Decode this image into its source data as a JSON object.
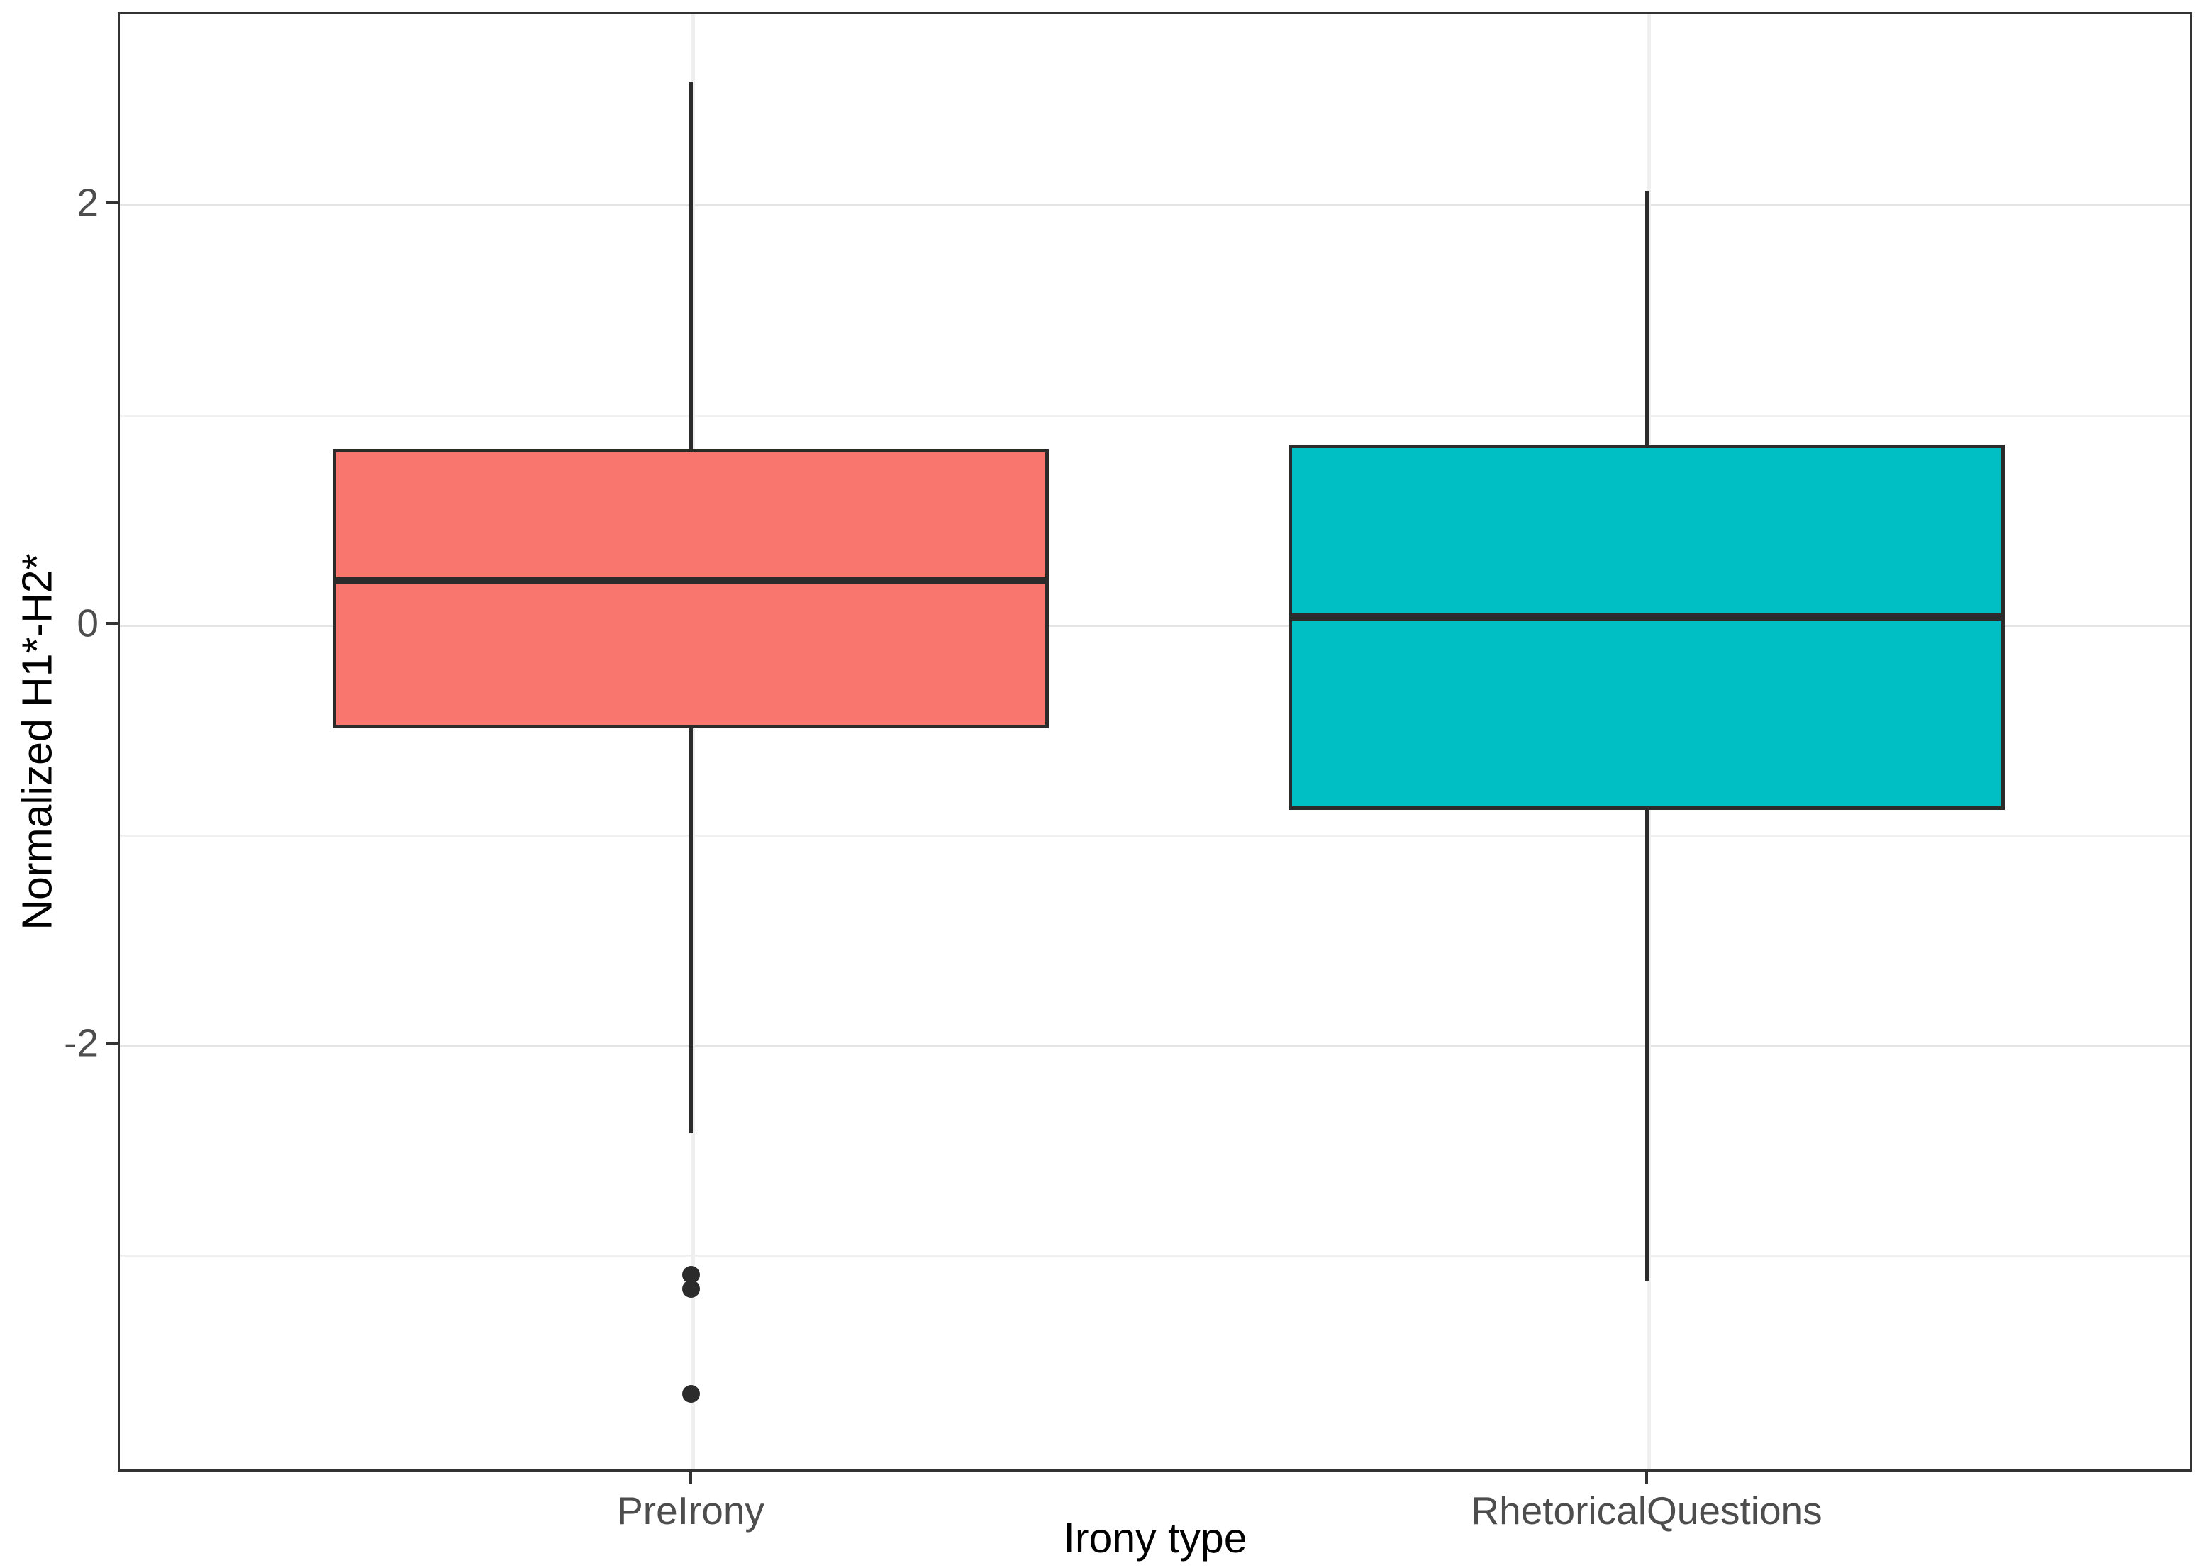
{
  "chart_data": {
    "type": "boxplot",
    "title": "",
    "xlabel": "Irony type",
    "ylabel": "Normalized H1*-H2*",
    "categories": [
      "PreIrony",
      "RhetoricalQuestions"
    ],
    "y_ticks": [
      2,
      0,
      -2
    ],
    "y_minor_gridlines": [
      1,
      -1,
      -3
    ],
    "ylim": [
      -4.04,
      2.91
    ],
    "grid": "on",
    "legend": "none",
    "series": [
      {
        "name": "PreIrony",
        "color": "#F8766D",
        "whisker_high": 2.58,
        "q3": 0.83,
        "median": 0.2,
        "q1": -0.5,
        "whisker_low": -2.43,
        "outliers": [
          -3.1,
          -3.17,
          -3.67
        ]
      },
      {
        "name": "RhetoricalQuestions",
        "color": "#00BFC4",
        "whisker_high": 2.06,
        "q3": 0.85,
        "median": 0.03,
        "q1": -0.89,
        "whisker_low": -3.13,
        "outliers": []
      }
    ],
    "box_outline_color": "#2b2b2b",
    "panel_border_color": "#333333"
  }
}
